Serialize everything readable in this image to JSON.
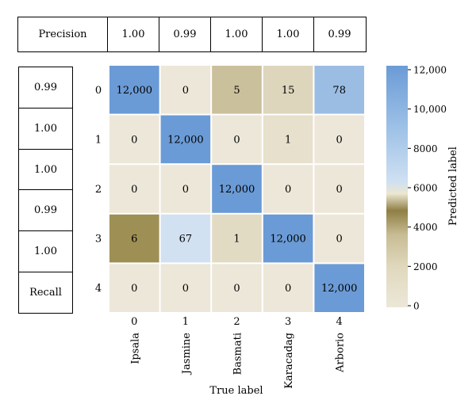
{
  "precision_row": {
    "label": "Precision",
    "values": [
      "1.00",
      "0.99",
      "1.00",
      "1.00",
      "0.99"
    ]
  },
  "recall_column": {
    "values": [
      "0.99",
      "1.00",
      "1.00",
      "0.99",
      "1.00"
    ],
    "label": "Recall"
  },
  "chart_data": {
    "type": "heatmap",
    "x_ticks": [
      "0",
      "1",
      "2",
      "3",
      "4"
    ],
    "x_categories": [
      "Ipsala",
      "Jasmine",
      "Basmati",
      "Karacadag",
      "Arborio"
    ],
    "y_ticks": [
      "0",
      "1",
      "2",
      "3",
      "4"
    ],
    "matrix": [
      [
        12000,
        0,
        5,
        15,
        78
      ],
      [
        0,
        12000,
        0,
        1,
        0
      ],
      [
        0,
        0,
        12000,
        0,
        0
      ],
      [
        6,
        67,
        1,
        12000,
        0
      ],
      [
        0,
        0,
        0,
        0,
        12000
      ]
    ],
    "cell_labels": [
      [
        "12,000",
        "0",
        "5",
        "15",
        "78"
      ],
      [
        "0",
        "12,000",
        "0",
        "1",
        "0"
      ],
      [
        "0",
        "0",
        "12,000",
        "0",
        "0"
      ],
      [
        "6",
        "67",
        "1",
        "12,000",
        "0"
      ],
      [
        "0",
        "0",
        "0",
        "0",
        "12,000"
      ]
    ],
    "xlabel": "True label",
    "colorbar": {
      "label": "Predicted label",
      "range": [
        0,
        12000
      ],
      "ticks": [
        0,
        2000,
        4000,
        6000,
        8000,
        10000,
        12000
      ],
      "tick_labels": [
        "0",
        "2000",
        "4000",
        "6000",
        "8000",
        "10,000",
        "12,000"
      ],
      "colors": [
        "#ece7d8",
        "#e0d8bd",
        "#c8bc94",
        "#8f7f45",
        "#cfe0f2",
        "#9cc0e6",
        "#6b9bd6"
      ]
    },
    "cell_colors": [
      [
        "#6b9bd6",
        "#ece7d8",
        "#cbc09c",
        "#ddd6bd",
        "#9cbde3"
      ],
      [
        "#ece7d8",
        "#6b9bd6",
        "#ece7d8",
        "#e6e0cc",
        "#ece7d8"
      ],
      [
        "#ece7d8",
        "#ece7d8",
        "#6b9bd6",
        "#ece7d8",
        "#ece7d8"
      ],
      [
        "#9e8f55",
        "#d2e1f1",
        "#e2dbc4",
        "#6b9bd6",
        "#ece7d8"
      ],
      [
        "#ece7d8",
        "#ece7d8",
        "#ece7d8",
        "#ece7d8",
        "#6b9bd6"
      ]
    ]
  }
}
